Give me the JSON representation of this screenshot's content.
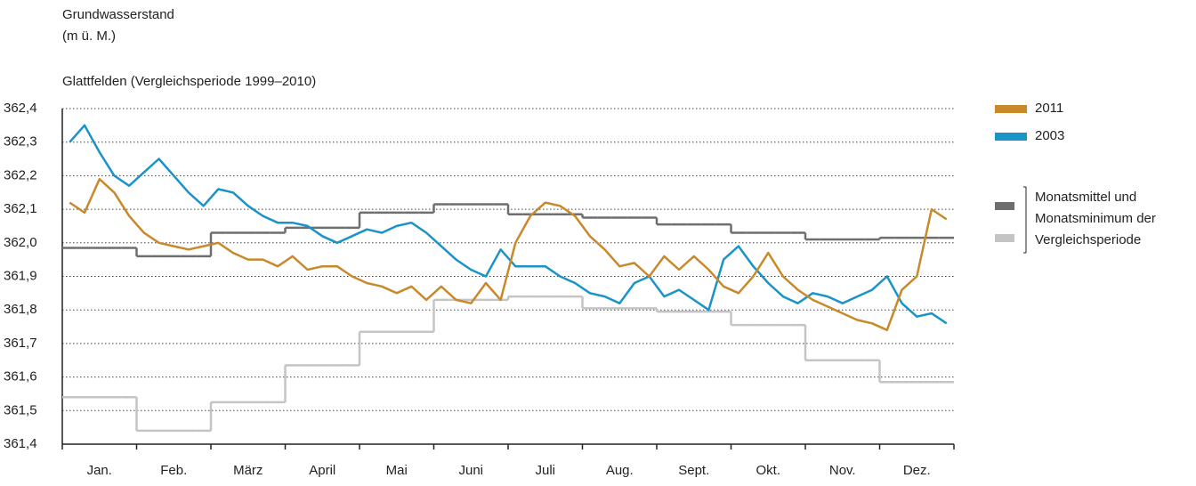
{
  "chart_data": {
    "type": "line",
    "title_lines": [
      "Grundwasserstand",
      "(m ü. M.)"
    ],
    "subtitle": "Glattfelden (Vergleichsperiode 1999–2010)",
    "categories": [
      null,
      null,
      "Jan.",
      null,
      null,
      null,
      null,
      "Feb.",
      null,
      null,
      null,
      null,
      "März",
      null,
      null,
      null,
      null,
      "April",
      null,
      null,
      null,
      null,
      "Mai",
      null,
      null,
      null,
      null,
      "Juni",
      null,
      null,
      null,
      null,
      "Juli",
      null,
      null,
      null,
      null,
      "Aug.",
      null,
      null,
      null,
      null,
      "Sept.",
      null,
      null,
      null,
      null,
      "Okt.",
      null,
      null,
      null,
      null,
      "Nov.",
      null,
      null,
      null,
      null,
      "Dez.",
      null,
      null
    ],
    "series": [
      {
        "name": "2011",
        "color": "#c8892a",
        "values": [
          362.12,
          362.09,
          362.19,
          362.15,
          362.08,
          362.03,
          362.0,
          361.99,
          361.98,
          361.99,
          362.0,
          361.97,
          361.95,
          361.95,
          361.93,
          361.96,
          361.92,
          361.93,
          361.93,
          361.9,
          361.88,
          361.87,
          361.85,
          361.87,
          361.83,
          361.87,
          361.83,
          361.82,
          361.88,
          361.83,
          362.0,
          362.08,
          362.12,
          362.11,
          362.08,
          362.02,
          361.98,
          361.93,
          361.94,
          361.9,
          361.96,
          361.92,
          361.96,
          361.92,
          361.87,
          361.85,
          361.9,
          361.97,
          361.9,
          361.86,
          361.83,
          361.81,
          361.79,
          361.77,
          361.76,
          361.74,
          361.86,
          361.9,
          362.1,
          362.07
        ]
      },
      {
        "name": "2003",
        "color": "#1a93c9",
        "values": [
          362.3,
          362.35,
          362.27,
          362.2,
          362.17,
          362.21,
          362.25,
          362.2,
          362.15,
          362.11,
          362.16,
          362.15,
          362.11,
          362.08,
          362.06,
          362.06,
          362.05,
          362.02,
          362.0,
          362.02,
          362.04,
          362.03,
          362.05,
          362.06,
          362.03,
          361.99,
          361.95,
          361.92,
          361.9,
          361.98,
          361.93,
          361.93,
          361.93,
          361.9,
          361.88,
          361.85,
          361.84,
          361.82,
          361.88,
          361.9,
          361.84,
          361.86,
          361.83,
          361.8,
          361.95,
          361.99,
          361.93,
          361.88,
          361.84,
          361.82,
          361.85,
          361.84,
          361.82,
          361.84,
          361.86,
          361.9,
          361.82,
          361.78,
          361.79,
          361.76
        ]
      },
      {
        "color": "#6e6e6e",
        "step": true,
        "values": [
          361.985,
          361.985,
          361.985,
          361.985,
          361.985,
          361.96,
          361.96,
          361.96,
          361.96,
          361.96,
          362.03,
          362.03,
          362.03,
          362.03,
          362.03,
          362.045,
          362.045,
          362.045,
          362.045,
          362.045,
          362.09,
          362.09,
          362.09,
          362.09,
          362.09,
          362.115,
          362.115,
          362.115,
          362.115,
          362.115,
          362.085,
          362.085,
          362.085,
          362.085,
          362.085,
          362.075,
          362.075,
          362.075,
          362.075,
          362.075,
          362.055,
          362.055,
          362.055,
          362.055,
          362.055,
          362.03,
          362.03,
          362.03,
          362.03,
          362.03,
          362.01,
          362.01,
          362.01,
          362.01,
          362.01,
          362.015,
          362.015,
          362.015,
          362.015,
          362.015
        ]
      },
      {
        "color": "#c4c4c4",
        "step": true,
        "values": [
          361.54,
          361.54,
          361.54,
          361.54,
          361.54,
          361.44,
          361.44,
          361.44,
          361.44,
          361.44,
          361.525,
          361.525,
          361.525,
          361.525,
          361.525,
          361.635,
          361.635,
          361.635,
          361.635,
          361.635,
          361.735,
          361.735,
          361.735,
          361.735,
          361.735,
          361.83,
          361.83,
          361.83,
          361.83,
          361.83,
          361.84,
          361.84,
          361.84,
          361.84,
          361.84,
          361.805,
          361.805,
          361.805,
          361.805,
          361.805,
          361.795,
          361.795,
          361.795,
          361.795,
          361.795,
          361.755,
          361.755,
          361.755,
          361.755,
          361.755,
          361.65,
          361.65,
          361.65,
          361.65,
          361.65,
          361.585,
          361.585,
          361.585,
          361.585,
          361.585
        ]
      }
    ],
    "legend_note_lines": [
      "Monatsmittel und",
      "Monatsminimum der",
      "Vergleichsperiode"
    ],
    "ylim": [
      361.4,
      362.4
    ],
    "yticks": [
      {
        "value": 361.4,
        "label": "361,4"
      },
      {
        "value": 361.5,
        "label": "361,5"
      },
      {
        "value": 361.6,
        "label": "361,6"
      },
      {
        "value": 361.7,
        "label": "361,7"
      },
      {
        "value": 361.8,
        "label": "361,8"
      },
      {
        "value": 361.9,
        "label": "361,9"
      },
      {
        "value": 362.0,
        "label": "362,0"
      },
      {
        "value": 362.1,
        "label": "362,1"
      },
      {
        "value": 362.2,
        "label": "362,2"
      },
      {
        "value": 362.3,
        "label": "362,3"
      },
      {
        "value": 362.4,
        "label": "362,4"
      }
    ],
    "grid": true,
    "legend": "right"
  }
}
